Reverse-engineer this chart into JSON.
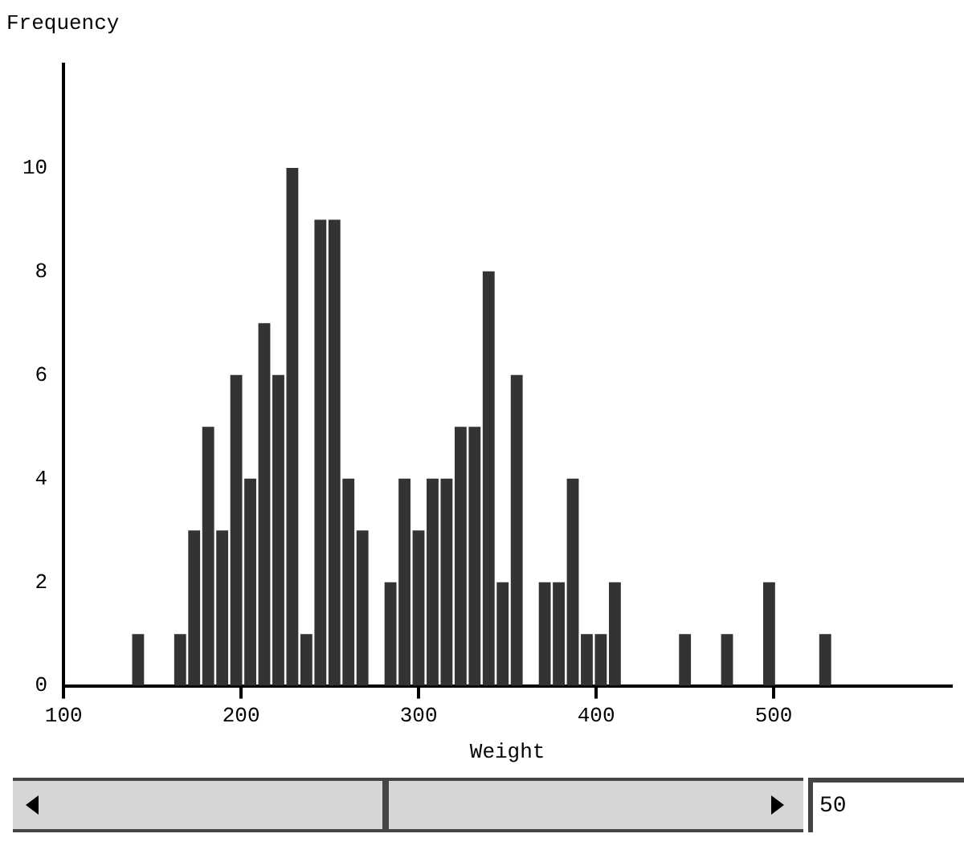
{
  "chart_data": {
    "type": "histogram",
    "xlabel": "Weight",
    "ylabel": "Frequency",
    "bins": [
      138,
      145.9,
      153.8,
      161.7,
      169.6,
      177.5,
      185.4,
      193.3,
      201.2,
      209.1,
      217,
      224.9,
      232.8,
      240.7,
      248.6,
      256.5,
      264.4,
      272.3,
      280.2,
      288.1,
      296,
      303.9,
      311.8,
      319.7,
      327.6,
      335.5,
      343.4,
      351.3,
      359.2,
      367.1,
      375,
      382.9,
      390.8,
      398.7,
      406.6,
      414.5,
      422.4,
      430.3,
      438.2,
      446.1,
      454,
      461.9,
      469.8,
      477.7,
      485.6,
      493.5,
      501.4,
      509.3,
      517.2,
      525.1,
      533
    ],
    "values": [
      1,
      0,
      0,
      1,
      3,
      5,
      3,
      6,
      4,
      7,
      6,
      10,
      1,
      9,
      9,
      4,
      3,
      0,
      2,
      4,
      3,
      4,
      4,
      5,
      5,
      8,
      2,
      6,
      0,
      2,
      2,
      4,
      1,
      1,
      2,
      0,
      0,
      0,
      0,
      1,
      0,
      0,
      1,
      0,
      0,
      2,
      0,
      0,
      0,
      1
    ],
    "color": "#333333",
    "xlim": [
      100,
      600
    ],
    "xticks": [
      100,
      200,
      300,
      400,
      500
    ],
    "ylim": [
      0,
      12
    ],
    "yticks": [
      0,
      2,
      4,
      6,
      8,
      10
    ],
    "grid": false,
    "annotations": [
      "50"
    ]
  }
}
